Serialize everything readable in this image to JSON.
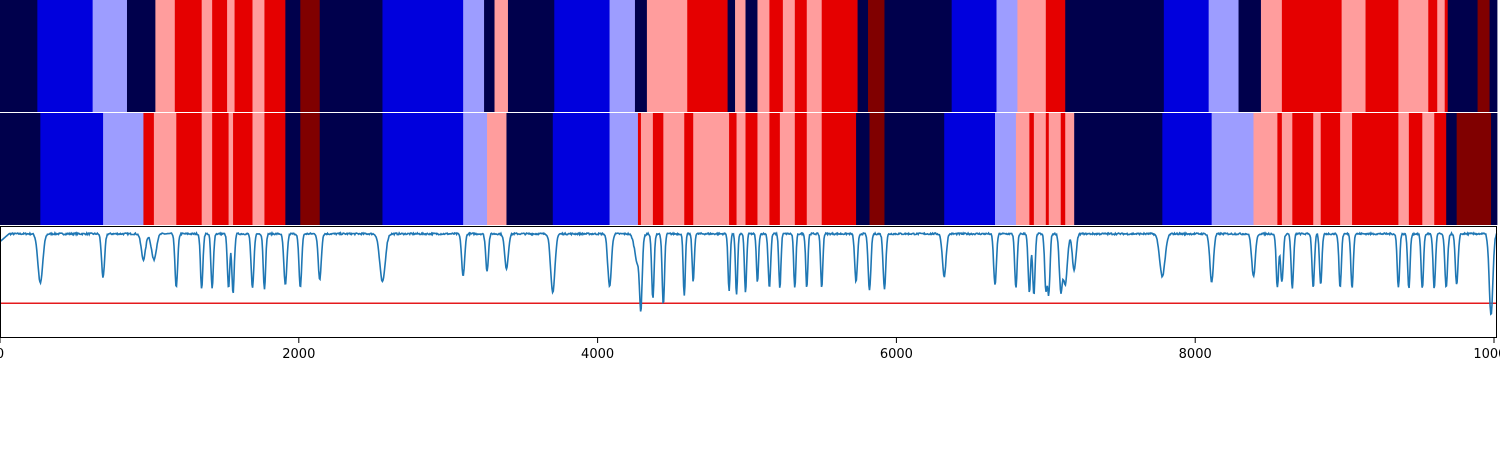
{
  "chart_data": {
    "type": "segmentation-plot",
    "x_range": [
      0,
      10020
    ],
    "xticks": [
      0,
      2000,
      4000,
      6000,
      8000,
      10000
    ],
    "xtick_labels": [
      "0",
      "2000",
      "4000",
      "6000",
      "8000",
      "10000"
    ],
    "colors": {
      "0": "#00004c",
      "1": "#0000dd",
      "2": "#9d9dff",
      "3": "#ff9d9d",
      "4": "#e50000",
      "5": "#800000"
    },
    "segmentations": [
      {
        "name": "",
        "segments": [
          [
            0,
            250,
            0
          ],
          [
            250,
            620,
            1
          ],
          [
            620,
            850,
            2
          ],
          [
            850,
            1040,
            0
          ],
          [
            1040,
            1170,
            3
          ],
          [
            1170,
            1350,
            4
          ],
          [
            1350,
            1420,
            3
          ],
          [
            1420,
            1520,
            4
          ],
          [
            1520,
            1570,
            3
          ],
          [
            1570,
            1690,
            4
          ],
          [
            1690,
            1770,
            3
          ],
          [
            1770,
            1910,
            4
          ],
          [
            1910,
            2010,
            0
          ],
          [
            2010,
            2140,
            5
          ],
          [
            2140,
            2560,
            0
          ],
          [
            2560,
            3100,
            1
          ],
          [
            3100,
            3240,
            2
          ],
          [
            3240,
            3310,
            0
          ],
          [
            3310,
            3400,
            3
          ],
          [
            3400,
            3710,
            0
          ],
          [
            3710,
            4080,
            1
          ],
          [
            4080,
            4250,
            2
          ],
          [
            4250,
            4330,
            0
          ],
          [
            4330,
            4600,
            3
          ],
          [
            4600,
            4870,
            4
          ],
          [
            4870,
            4920,
            0
          ],
          [
            4920,
            4990,
            3
          ],
          [
            4990,
            5070,
            0
          ],
          [
            5070,
            5150,
            3
          ],
          [
            5150,
            5240,
            4
          ],
          [
            5240,
            5320,
            3
          ],
          [
            5320,
            5400,
            4
          ],
          [
            5400,
            5500,
            3
          ],
          [
            5500,
            5740,
            4
          ],
          [
            5740,
            5810,
            0
          ],
          [
            5810,
            5920,
            5
          ],
          [
            5920,
            6370,
            0
          ],
          [
            6370,
            6670,
            1
          ],
          [
            6670,
            6810,
            2
          ],
          [
            6810,
            7000,
            3
          ],
          [
            7000,
            7130,
            4
          ],
          [
            7130,
            7790,
            0
          ],
          [
            7790,
            8090,
            1
          ],
          [
            8090,
            8290,
            2
          ],
          [
            8290,
            8440,
            0
          ],
          [
            8440,
            8580,
            3
          ],
          [
            8580,
            8980,
            4
          ],
          [
            8980,
            9140,
            3
          ],
          [
            9140,
            9360,
            4
          ],
          [
            9360,
            9560,
            3
          ],
          [
            9560,
            9620,
            4
          ],
          [
            9620,
            9670,
            3
          ],
          [
            9670,
            9690,
            4
          ],
          [
            9690,
            9890,
            0
          ],
          [
            9890,
            9970,
            5
          ],
          [
            9970,
            10020,
            0
          ]
        ]
      },
      {
        "name": "",
        "segments": [
          [
            0,
            270,
            0
          ],
          [
            270,
            690,
            1
          ],
          [
            690,
            960,
            2
          ],
          [
            960,
            1030,
            4
          ],
          [
            1030,
            1180,
            3
          ],
          [
            1180,
            1350,
            4
          ],
          [
            1350,
            1420,
            3
          ],
          [
            1420,
            1530,
            4
          ],
          [
            1530,
            1560,
            3
          ],
          [
            1560,
            1690,
            4
          ],
          [
            1690,
            1770,
            3
          ],
          [
            1770,
            1910,
            4
          ],
          [
            1910,
            2010,
            0
          ],
          [
            2010,
            2140,
            5
          ],
          [
            2140,
            2560,
            0
          ],
          [
            2560,
            3100,
            1
          ],
          [
            3100,
            3260,
            2
          ],
          [
            3260,
            3390,
            3
          ],
          [
            3390,
            3700,
            0
          ],
          [
            3700,
            4080,
            1
          ],
          [
            4080,
            4270,
            2
          ],
          [
            4270,
            4290,
            4
          ],
          [
            4290,
            4370,
            3
          ],
          [
            4370,
            4440,
            4
          ],
          [
            4440,
            4580,
            3
          ],
          [
            4580,
            4640,
            4
          ],
          [
            4640,
            4880,
            3
          ],
          [
            4880,
            4930,
            4
          ],
          [
            4930,
            4990,
            3
          ],
          [
            4990,
            5070,
            4
          ],
          [
            5070,
            5150,
            3
          ],
          [
            5150,
            5220,
            4
          ],
          [
            5220,
            5320,
            3
          ],
          [
            5320,
            5400,
            4
          ],
          [
            5400,
            5500,
            3
          ],
          [
            5500,
            5730,
            4
          ],
          [
            5730,
            5820,
            0
          ],
          [
            5820,
            5920,
            5
          ],
          [
            5920,
            6320,
            0
          ],
          [
            6320,
            6660,
            1
          ],
          [
            6660,
            6800,
            2
          ],
          [
            6800,
            6890,
            3
          ],
          [
            6890,
            6920,
            4
          ],
          [
            6920,
            7000,
            3
          ],
          [
            7000,
            7020,
            4
          ],
          [
            7020,
            7100,
            3
          ],
          [
            7100,
            7130,
            4
          ],
          [
            7130,
            7190,
            3
          ],
          [
            7190,
            7780,
            0
          ],
          [
            7780,
            8110,
            1
          ],
          [
            8110,
            8390,
            2
          ],
          [
            8390,
            8550,
            3
          ],
          [
            8550,
            8580,
            4
          ],
          [
            8580,
            8650,
            3
          ],
          [
            8650,
            8790,
            4
          ],
          [
            8790,
            8840,
            3
          ],
          [
            8840,
            8970,
            4
          ],
          [
            8970,
            9050,
            3
          ],
          [
            9050,
            9360,
            4
          ],
          [
            9360,
            9430,
            3
          ],
          [
            9430,
            9520,
            4
          ],
          [
            9520,
            9600,
            3
          ],
          [
            9600,
            9680,
            4
          ],
          [
            9680,
            9750,
            0
          ],
          [
            9750,
            9980,
            5
          ],
          [
            9980,
            10020,
            0
          ]
        ]
      }
    ],
    "signal": {
      "name": "",
      "color": "#1f77b4",
      "ylim": [
        0,
        1
      ],
      "baseline": 0.93,
      "baseline_noise": 0.015,
      "dips": [
        [
          270,
          0.49,
          16
        ],
        [
          690,
          0.54,
          10
        ],
        [
          960,
          0.7,
          14
        ],
        [
          1030,
          0.7,
          16
        ],
        [
          1180,
          0.45,
          9
        ],
        [
          1350,
          0.44,
          8
        ],
        [
          1420,
          0.44,
          8
        ],
        [
          1530,
          0.44,
          8
        ],
        [
          1560,
          0.4,
          8
        ],
        [
          1690,
          0.44,
          9
        ],
        [
          1770,
          0.44,
          8
        ],
        [
          1910,
          0.47,
          10
        ],
        [
          2010,
          0.45,
          9
        ],
        [
          2140,
          0.52,
          10
        ],
        [
          2560,
          0.5,
          18
        ],
        [
          3100,
          0.55,
          10
        ],
        [
          3260,
          0.6,
          9
        ],
        [
          3390,
          0.62,
          12
        ],
        [
          3700,
          0.4,
          14
        ],
        [
          4080,
          0.46,
          12
        ],
        [
          4270,
          0.66,
          20
        ],
        [
          4290,
          0.4,
          8
        ],
        [
          4370,
          0.35,
          8
        ],
        [
          4440,
          0.3,
          8
        ],
        [
          4580,
          0.38,
          7
        ],
        [
          4640,
          0.5,
          7
        ],
        [
          4880,
          0.42,
          7
        ],
        [
          4930,
          0.38,
          7
        ],
        [
          4990,
          0.4,
          7
        ],
        [
          5070,
          0.5,
          7
        ],
        [
          5150,
          0.45,
          8
        ],
        [
          5220,
          0.44,
          7
        ],
        [
          5320,
          0.44,
          7
        ],
        [
          5400,
          0.45,
          7
        ],
        [
          5500,
          0.44,
          7
        ],
        [
          5730,
          0.5,
          9
        ],
        [
          5820,
          0.42,
          9
        ],
        [
          5920,
          0.44,
          9
        ],
        [
          6320,
          0.55,
          12
        ],
        [
          6660,
          0.47,
          9
        ],
        [
          6800,
          0.44,
          8
        ],
        [
          6890,
          0.4,
          8
        ],
        [
          6920,
          0.38,
          8
        ],
        [
          7000,
          0.44,
          8
        ],
        [
          7020,
          0.4,
          8
        ],
        [
          7100,
          0.45,
          10
        ],
        [
          7130,
          0.48,
          14
        ],
        [
          7190,
          0.6,
          12
        ],
        [
          7780,
          0.55,
          18
        ],
        [
          8110,
          0.5,
          12
        ],
        [
          8390,
          0.55,
          12
        ],
        [
          8550,
          0.45,
          8
        ],
        [
          8580,
          0.5,
          9
        ],
        [
          8650,
          0.44,
          8
        ],
        [
          8790,
          0.45,
          8
        ],
        [
          8840,
          0.47,
          8
        ],
        [
          8970,
          0.45,
          8
        ],
        [
          9050,
          0.45,
          8
        ],
        [
          9360,
          0.45,
          8
        ],
        [
          9430,
          0.44,
          8
        ],
        [
          9520,
          0.44,
          8
        ],
        [
          9600,
          0.44,
          8
        ],
        [
          9680,
          0.45,
          9
        ],
        [
          9750,
          0.47,
          9
        ],
        [
          9980,
          0.2,
          12
        ]
      ]
    },
    "threshold": {
      "value": 0.31,
      "color": "#e41a1c"
    }
  }
}
